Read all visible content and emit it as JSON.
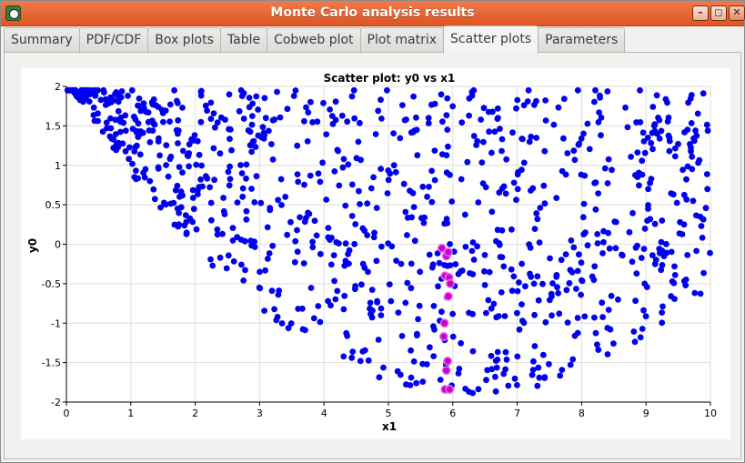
{
  "window": {
    "title": "Monte Carlo analysis results",
    "buttons": {
      "minimize": "–",
      "maximize": "◻",
      "close": "✕"
    }
  },
  "tabs": [
    {
      "label": "Summary",
      "active": false
    },
    {
      "label": "PDF/CDF",
      "active": false
    },
    {
      "label": "Box plots",
      "active": false
    },
    {
      "label": "Table",
      "active": false
    },
    {
      "label": "Cobweb plot",
      "active": false
    },
    {
      "label": "Plot matrix",
      "active": false
    },
    {
      "label": "Scatter plots",
      "active": true
    },
    {
      "label": "Parameters",
      "active": false
    }
  ],
  "chart_data": {
    "type": "scatter",
    "title": "Scatter plot: y0 vs x1",
    "xlabel": "x1",
    "ylabel": "y0",
    "xlim": [
      0,
      10
    ],
    "ylim": [
      -2,
      2
    ],
    "xticks": [
      "0",
      "1",
      "2",
      "3",
      "4",
      "5",
      "6",
      "7",
      "8",
      "9",
      "10"
    ],
    "yticks": [
      "-2",
      "-1.5",
      "-1",
      "-0.5",
      "0",
      "0.5",
      "1",
      "1.5",
      "2"
    ],
    "grid": true,
    "colors": {
      "points": "#0000ee",
      "highlight": "#cc00cc"
    },
    "n_points": 1000,
    "band_halfwidth": 2.0,
    "highlight_points": [
      [
        5.83,
        -0.05
      ],
      [
        5.9,
        -0.15
      ],
      [
        5.93,
        -0.1
      ],
      [
        5.88,
        -0.4
      ],
      [
        5.94,
        -0.42
      ],
      [
        5.96,
        -0.5
      ],
      [
        5.93,
        -0.66
      ],
      [
        5.87,
        -1.0
      ],
      [
        5.86,
        -1.17
      ],
      [
        5.92,
        -1.48
      ],
      [
        5.9,
        -1.6
      ],
      [
        5.88,
        -1.84
      ],
      [
        5.95,
        -1.84
      ]
    ]
  }
}
